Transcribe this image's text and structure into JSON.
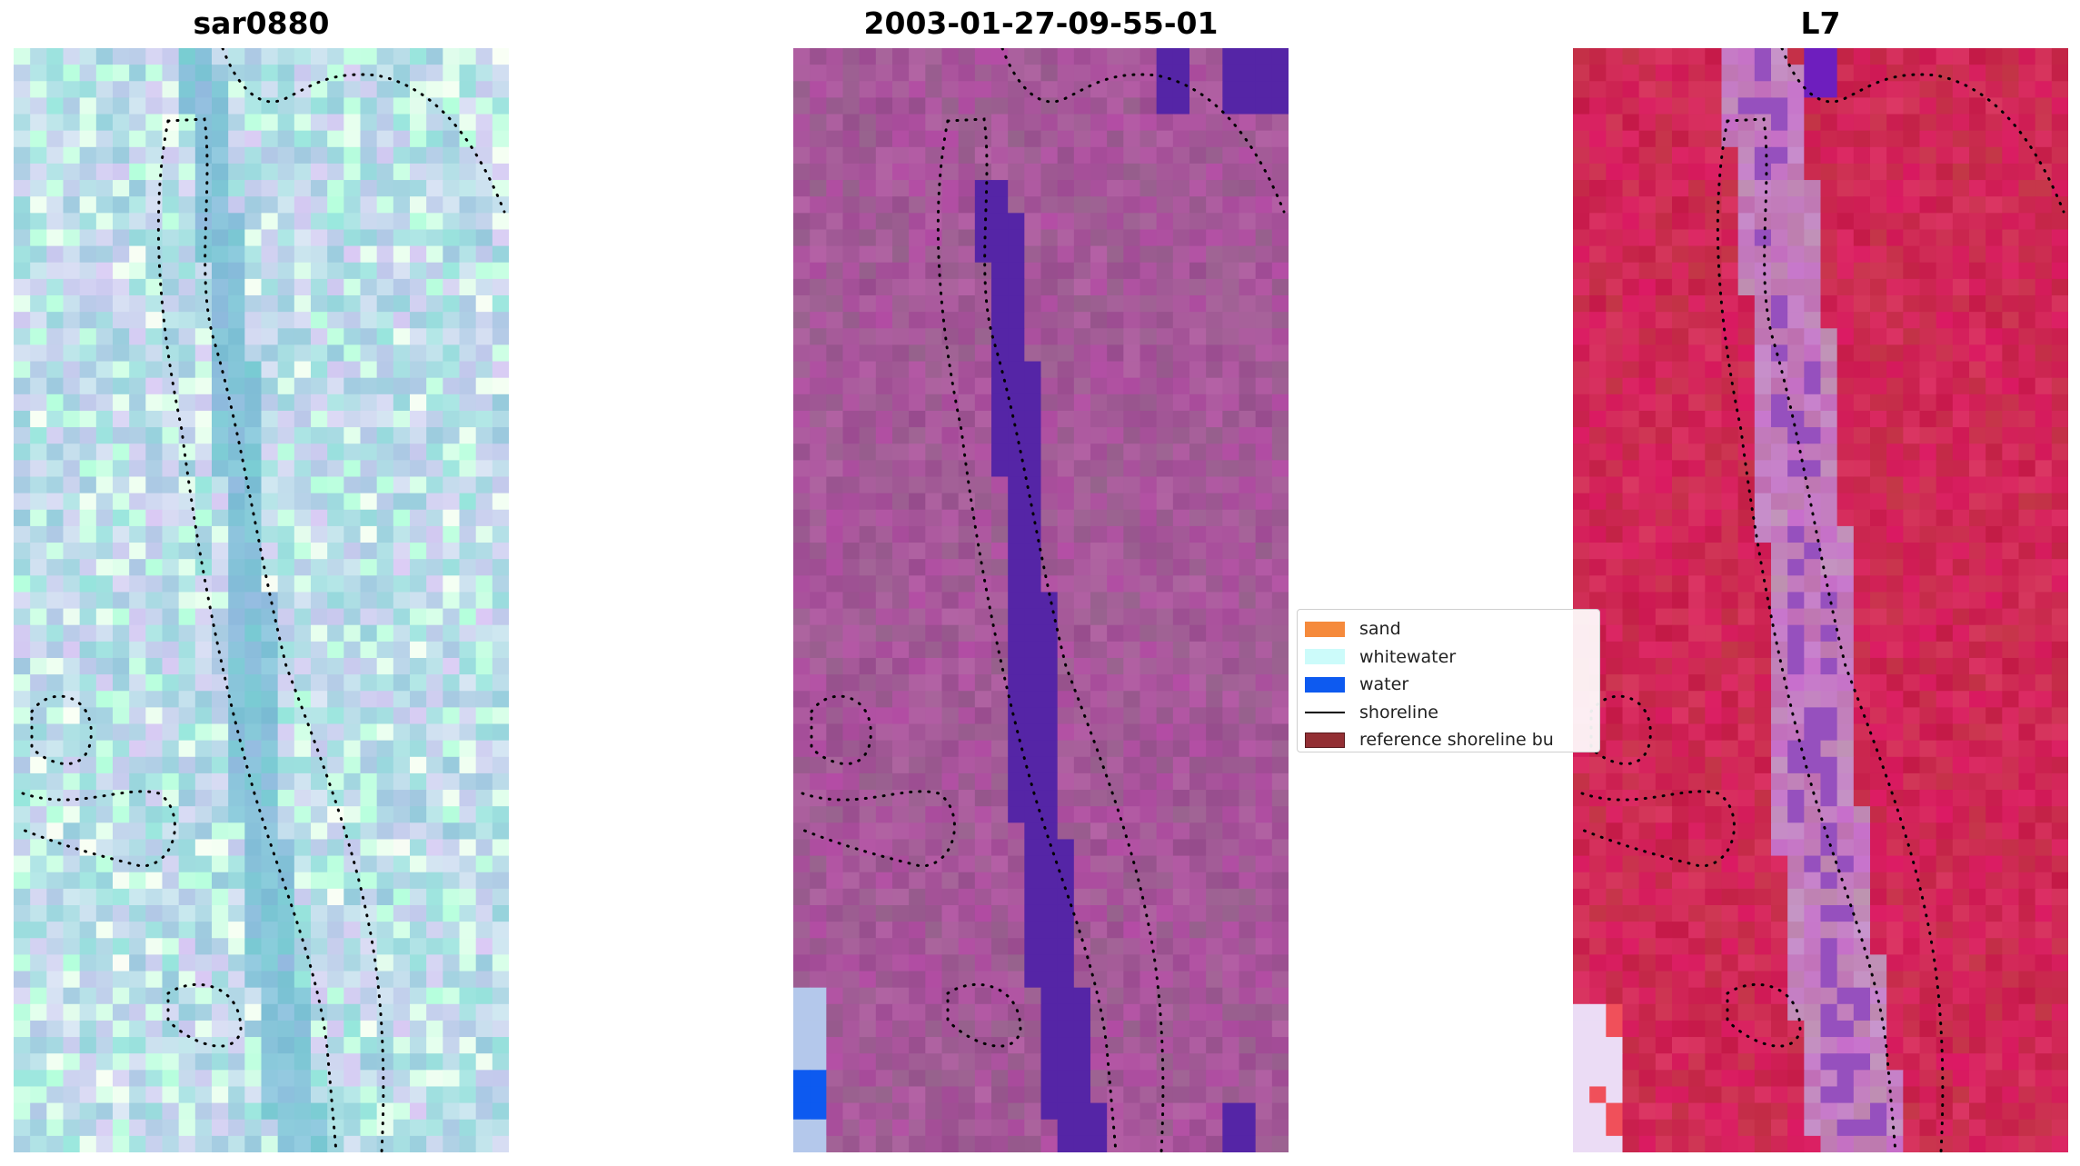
{
  "panels": [
    {
      "title": "sar0880",
      "tone": "rgb-natural"
    },
    {
      "title": "2003-01-27-09-55-01",
      "tone": "classified"
    },
    {
      "title": "L7",
      "tone": "index-map"
    }
  ],
  "legend": {
    "items": [
      {
        "label": "sand",
        "color": "#f58a3c",
        "kind": "patch"
      },
      {
        "label": "whitewater",
        "color": "#ccfbfa",
        "kind": "patch"
      },
      {
        "label": "water",
        "color": "#0d5af0",
        "kind": "patch"
      },
      {
        "label": "shoreline",
        "color": "#000000",
        "kind": "line"
      },
      {
        "label": "reference shoreline bu",
        "color": "#932f34",
        "kind": "patch"
      }
    ]
  },
  "colors": {
    "rgb_base": "#97c7dc",
    "classified_base": "#a2539a",
    "classified_water": "#5425a6",
    "index_base": "#c81e4a",
    "index_low": "#c9a0cc"
  }
}
